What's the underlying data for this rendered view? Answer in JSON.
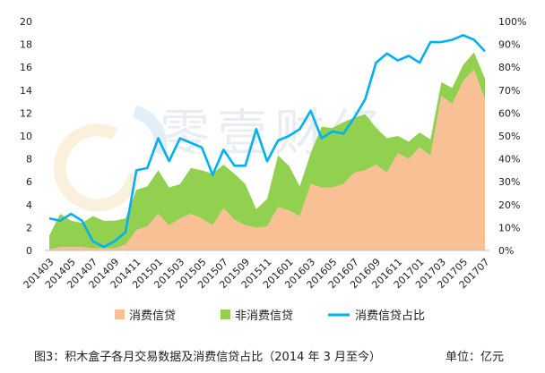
{
  "chart_data": {
    "type": "area",
    "categories": [
      "201403",
      "201404",
      "201405",
      "201406",
      "201407",
      "201408",
      "201409",
      "201410",
      "201411",
      "201412",
      "201501",
      "201502",
      "201503",
      "201504",
      "201505",
      "201506",
      "201507",
      "201508",
      "201509",
      "201510",
      "201511",
      "201512",
      "201601",
      "201602",
      "201603",
      "201604",
      "201605",
      "201606",
      "201607",
      "201608",
      "201609",
      "201610",
      "201611",
      "201612",
      "201701",
      "201702",
      "201703",
      "201704",
      "201705",
      "201706",
      "201707"
    ],
    "x_tick_labels": [
      "201403",
      "201405",
      "201407",
      "201409",
      "201411",
      "201501",
      "201503",
      "201505",
      "201507",
      "201509",
      "201511",
      "201601",
      "201603",
      "201605",
      "201607",
      "201609",
      "201611",
      "201701",
      "201703",
      "201705",
      "201707"
    ],
    "series": [
      {
        "name": "消费信贷",
        "axis": "left",
        "kind": "area",
        "color": "#f9bf95",
        "values": [
          0.1,
          0.3,
          0.3,
          0.3,
          0.2,
          0.2,
          0.2,
          0.5,
          1.8,
          2.1,
          3.2,
          2.2,
          2.8,
          3.2,
          2.8,
          2.2,
          3.7,
          2.7,
          2.2,
          2.0,
          2.1,
          3.8,
          3.5,
          3.0,
          5.8,
          5.5,
          5.5,
          5.8,
          6.8,
          7.0,
          7.5,
          6.8,
          8.5,
          8.0,
          9.0,
          8.3,
          13.5,
          12.8,
          14.8,
          15.8,
          13.2
        ]
      },
      {
        "name": "非消费信贷",
        "axis": "left",
        "kind": "area",
        "color": "#92d050",
        "values": [
          1.2,
          2.9,
          2.3,
          2.1,
          2.8,
          2.4,
          2.4,
          2.3,
          3.5,
          3.5,
          3.8,
          3.3,
          3.0,
          4.0,
          4.2,
          4.5,
          3.8,
          4.0,
          3.6,
          1.6,
          2.4,
          4.5,
          3.9,
          2.6,
          2.7,
          5.3,
          5.2,
          5.4,
          4.8,
          4.9,
          3.2,
          3.0,
          1.5,
          1.5,
          1.3,
          1.4,
          1.2,
          1.4,
          1.4,
          1.5,
          1.8
        ]
      },
      {
        "name": "消费信贷占比",
        "axis": "right",
        "kind": "line",
        "color": "#00b0f0",
        "values": [
          0.14,
          0.13,
          0.16,
          0.13,
          0.04,
          0.015,
          0.04,
          0.08,
          0.35,
          0.36,
          0.49,
          0.39,
          0.49,
          0.47,
          0.45,
          0.33,
          0.44,
          0.37,
          0.37,
          0.53,
          0.39,
          0.48,
          0.5,
          0.53,
          0.61,
          0.49,
          0.52,
          0.51,
          0.58,
          0.66,
          0.82,
          0.86,
          0.83,
          0.85,
          0.82,
          0.91,
          0.91,
          0.92,
          0.94,
          0.92,
          0.87
        ]
      }
    ],
    "y_left": {
      "min": 0,
      "max": 20,
      "step": 2,
      "tick_labels": [
        "0",
        "2",
        "4",
        "6",
        "8",
        "10",
        "12",
        "14",
        "16",
        "18",
        "20"
      ]
    },
    "y_right": {
      "min": 0,
      "max": 1,
      "step": 0.1,
      "tick_labels": [
        "0%",
        "10%",
        "20%",
        "30%",
        "40%",
        "50%",
        "60%",
        "70%",
        "80%",
        "90%",
        "100%"
      ]
    },
    "grid": false,
    "legend": {
      "placement": "bottom",
      "items": [
        {
          "label": "消费信贷",
          "color": "#f9bf95",
          "shape": "box"
        },
        {
          "label": "非消费信贷",
          "color": "#92d050",
          "shape": "box"
        },
        {
          "label": "消费信贷占比",
          "color": "#00b0f0",
          "shape": "line"
        }
      ]
    },
    "watermark": "零壹财经"
  },
  "caption": "图3：积木盒子各月交易数据及消费信贷占比（2014 年 3 月至今）",
  "unit_label": "单位：亿元"
}
